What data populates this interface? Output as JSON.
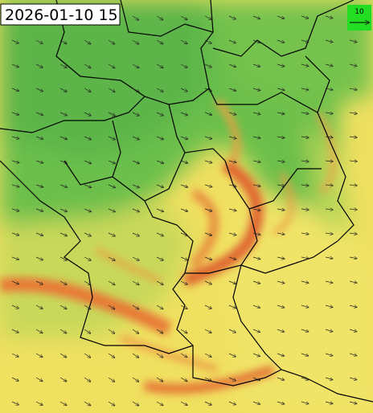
{
  "timestamp": "2026-01-10 15",
  "legend": {
    "label": "10"
  }
}
